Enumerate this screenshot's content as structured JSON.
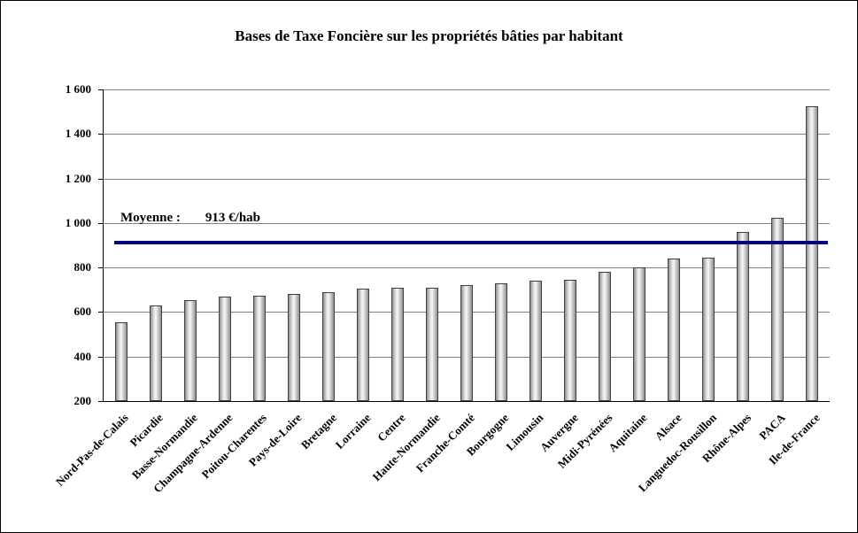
{
  "chart_data": {
    "type": "bar",
    "title": "Bases de Taxe Foncière sur les propriétés bâties par habitant",
    "categories": [
      "Nord-Pas-de-Calais",
      "Picardie",
      "Basse-Normandie",
      "Champagne-Ardenne",
      "Poitou-Charentes",
      "Pays-de-Loire",
      "Bretagne",
      "Lorraine",
      "Centre",
      "Haute-Normandie",
      "Franche-Comté",
      "Bourgogne",
      "Limousin",
      "Auvergne",
      "Midi-Pyrénées",
      "Aquitaine",
      "Alsace",
      "Languedoc-Rousillon",
      "Rhône-Alpes",
      "PACA",
      "Ile-de-France"
    ],
    "values": [
      555,
      630,
      655,
      670,
      675,
      680,
      690,
      705,
      710,
      710,
      720,
      730,
      740,
      745,
      780,
      800,
      840,
      845,
      960,
      1025,
      1525
    ],
    "xlabel": "",
    "ylabel": "",
    "ylim": [
      200,
      1600
    ],
    "y_ticks": [
      200,
      400,
      600,
      800,
      1000,
      1200,
      1400,
      1600
    ],
    "y_tick_labels": [
      "200",
      "400",
      "600",
      "800",
      "1 000",
      "1 200",
      "1 400",
      "1 600"
    ],
    "grid": true,
    "legend": "none",
    "bar_border_color": "#404040",
    "bar_fill_color": "#d9d9d9",
    "average": {
      "value": 913,
      "label": "Moyenne :",
      "value_label": "913 €/hab",
      "line_color": "#000080"
    }
  }
}
